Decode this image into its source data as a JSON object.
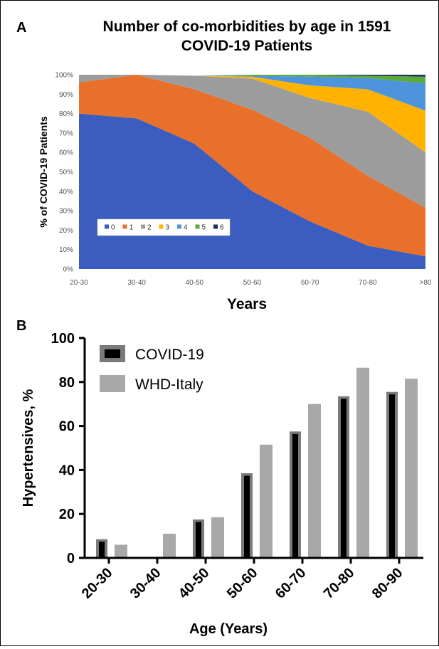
{
  "panel_a": {
    "letter": "A",
    "title_line1": "Number of co-morbidities by age in 1591",
    "title_line2": "COVID-19 Patients"
  },
  "panel_b": {
    "letter": "B"
  },
  "chart_data": [
    {
      "type": "area",
      "stacked": "percent",
      "title": "Number of co-morbidities by age in 1591 COVID-19 Patients",
      "xlabel": "Years",
      "ylabel": "% of COVID-19 Patients",
      "categories": [
        "20-30",
        "30-40",
        "40-50",
        "50-60",
        "60-70",
        "70-80",
        ">80"
      ],
      "y_ticks": [
        "0%",
        "10%",
        "20%",
        "30%",
        "40%",
        "50%",
        "60%",
        "70%",
        "80%",
        "90%",
        "100%"
      ],
      "ylim": [
        0,
        100
      ],
      "grid": false,
      "legend": "bottom-left",
      "series": [
        {
          "name": "0",
          "color": "#3a5dbf",
          "values": [
            80,
            77.5,
            64.5,
            40,
            24.5,
            12,
            6.5
          ]
        },
        {
          "name": "1",
          "color": "#e8702b",
          "values": [
            16,
            22.5,
            28,
            42,
            43,
            36,
            25
          ]
        },
        {
          "name": "2",
          "color": "#9c9c9c",
          "values": [
            4,
            0,
            7,
            16,
            20.5,
            33,
            28.5
          ]
        },
        {
          "name": "3",
          "color": "#ffb300",
          "values": [
            0,
            0,
            0,
            1,
            6.5,
            11.5,
            21.5
          ]
        },
        {
          "name": "4",
          "color": "#4d94dc",
          "values": [
            0,
            0,
            0,
            0.5,
            4.5,
            5.8,
            14
          ]
        },
        {
          "name": "5",
          "color": "#5aaa3c",
          "values": [
            0,
            0,
            0,
            0.5,
            1,
            1.2,
            3.5
          ]
        },
        {
          "name": "6",
          "color": "#1e2f5a",
          "values": [
            0,
            0,
            0,
            0,
            0,
            0.5,
            1
          ]
        }
      ]
    },
    {
      "type": "bar",
      "xlabel": "Age (Years)",
      "ylabel": "Hypertensives, %",
      "categories": [
        "20-30",
        "30-40",
        "40-50",
        "50-60",
        "60-70",
        "70-80",
        "80-90"
      ],
      "y_ticks": [
        "0",
        "20",
        "40",
        "60",
        "80",
        "100"
      ],
      "ylim": [
        0,
        100
      ],
      "grid": false,
      "legend": "top-left",
      "series": [
        {
          "name": "COVID-19",
          "color": "#000000",
          "edge_color": "#7a7a7a",
          "values": [
            8.5,
            0,
            17.5,
            38.5,
            57.5,
            73.5,
            75.5
          ]
        },
        {
          "name": "WHD-Italy",
          "color": "#a8a8ab",
          "values": [
            6,
            11,
            18.5,
            51.5,
            70,
            86.5,
            81.5
          ]
        }
      ]
    }
  ]
}
